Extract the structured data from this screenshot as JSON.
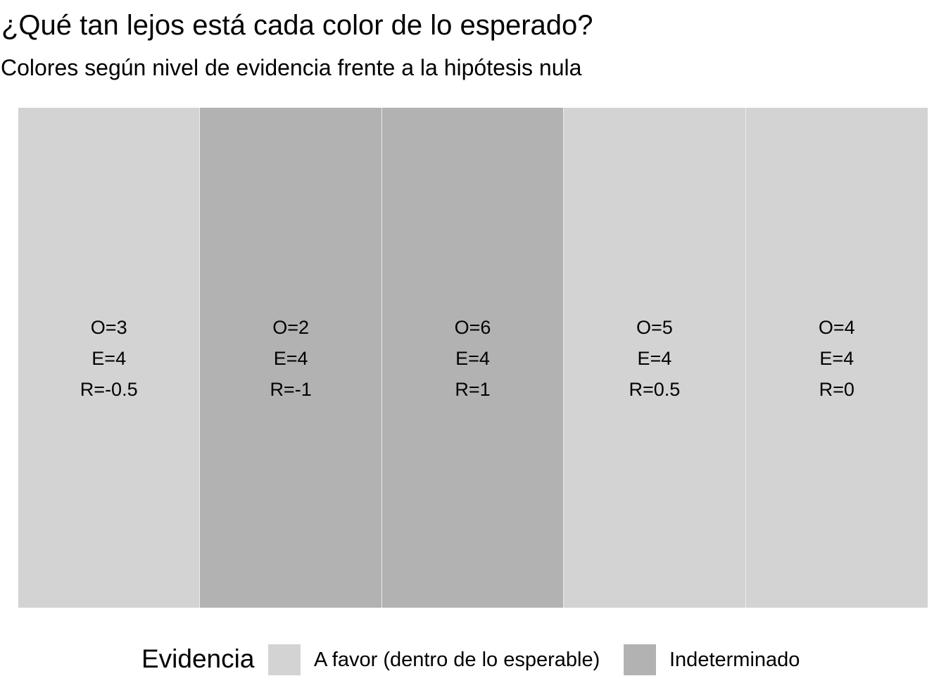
{
  "chart_data": {
    "type": "heatmap",
    "title": "¿Qué tan lejos está cada color de lo esperado?",
    "subtitle": "Colores según nivel de evidencia frente a la hipótesis nula",
    "legend_title": "Evidencia",
    "legend_position": "bottom",
    "grid": false,
    "categories_legend": [
      {
        "label": "A favor (dentro de lo esperable)",
        "color": "#d3d3d3"
      },
      {
        "label": "Indeterminado",
        "color": "#b2b2b2"
      }
    ],
    "cells": [
      {
        "observed": 3,
        "expected": 4,
        "residual": -0.5,
        "label_o": "O=3",
        "label_e": "E=4",
        "label_r": "R=-0.5",
        "evidence": "A favor (dentro de lo esperable)"
      },
      {
        "observed": 2,
        "expected": 4,
        "residual": -1,
        "label_o": "O=2",
        "label_e": "E=4",
        "label_r": "R=-1",
        "evidence": "Indeterminado"
      },
      {
        "observed": 6,
        "expected": 4,
        "residual": 1,
        "label_o": "O=6",
        "label_e": "E=4",
        "label_r": "R=1",
        "evidence": "Indeterminado"
      },
      {
        "observed": 5,
        "expected": 4,
        "residual": 0.5,
        "label_o": "O=5",
        "label_e": "E=4",
        "label_r": "R=0.5",
        "evidence": "A favor (dentro de lo esperable)"
      },
      {
        "observed": 4,
        "expected": 4,
        "residual": 0,
        "label_o": "O=4",
        "label_e": "E=4",
        "label_r": "R=0",
        "evidence": "A favor (dentro de lo esperable)"
      }
    ]
  }
}
